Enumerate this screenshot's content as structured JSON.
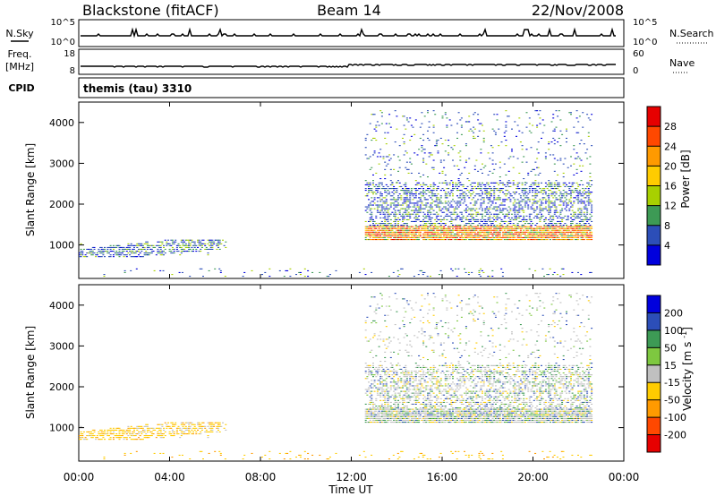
{
  "header": {
    "station": "Blackstone (fitACF)",
    "beam": "Beam 14",
    "date": "22/Nov/2008"
  },
  "sky_panel": {
    "left_label": "N.Sky",
    "right_label": "N.Search",
    "left_ticks": [
      "10^5",
      "10^0"
    ],
    "right_ticks": [
      "10^5",
      "10^0"
    ]
  },
  "freq_panel": {
    "left_label_1": "Freq.",
    "left_label_2": "[MHz]",
    "right_label": "Nave",
    "left_ticks": [
      "18",
      "8"
    ],
    "right_ticks": [
      "60",
      "0"
    ]
  },
  "cpid_panel": {
    "label": "CPID",
    "value": "themis (tau) 3310"
  },
  "chart_data": [
    {
      "type": "heatmap",
      "name": "power",
      "ylabel": "Slant Range [km]",
      "yticks": [
        1000,
        2000,
        3000,
        4000
      ],
      "ylim": [
        180,
        4500
      ],
      "colorbar": {
        "label": "Power [dB]",
        "ticks": [
          "28",
          "24",
          "20",
          "16",
          "12",
          "8",
          "4"
        ],
        "colors": [
          "#e60000",
          "#ff4800",
          "#ff9a00",
          "#ffcc00",
          "#a8d000",
          "#3d9a55",
          "#2c4eb8",
          "#0000dd"
        ]
      },
      "regions": [
        {
          "t0": 0.0,
          "t1": 6.5,
          "r0": 680,
          "r1": 1100,
          "palette": "power",
          "density": 0.55
        },
        {
          "t0": 12.6,
          "t1": 22.6,
          "r0": 1100,
          "r1": 1450,
          "palette": "power_strong",
          "density": 0.92
        },
        {
          "t0": 12.6,
          "t1": 22.6,
          "r0": 1450,
          "r1": 2500,
          "palette": "power_weak",
          "density": 0.45
        },
        {
          "t0": 12.6,
          "t1": 22.6,
          "r0": 2500,
          "r1": 4300,
          "palette": "power_weak",
          "density": 0.07
        },
        {
          "t0": 0.5,
          "t1": 22.6,
          "r0": 200,
          "r1": 420,
          "palette": "power_weak",
          "density": 0.06
        }
      ]
    },
    {
      "type": "heatmap",
      "name": "velocity",
      "ylabel": "Slant Range [km]",
      "xlabel": "Time UT",
      "xticks": [
        "00:00",
        "04:00",
        "08:00",
        "12:00",
        "16:00",
        "20:00",
        "00:00"
      ],
      "yticks": [
        1000,
        2000,
        3000,
        4000
      ],
      "ylim": [
        180,
        4500
      ],
      "xlim": [
        0,
        24
      ],
      "colorbar": {
        "label": "Velocity [m s^-1]",
        "ticks": [
          "200",
          "100",
          "50",
          "15",
          "-15",
          "-50",
          "-100",
          "-200"
        ],
        "colors": [
          "#0000dd",
          "#2c4eb8",
          "#3d9a55",
          "#7ec840",
          "#c0c0c0",
          "#ffcc00",
          "#ff9a00",
          "#ff4800",
          "#e60000"
        ]
      },
      "regions": [
        {
          "t0": 0.0,
          "t1": 6.5,
          "r0": 680,
          "r1": 1100,
          "palette": "vel_mix",
          "density": 0.55
        },
        {
          "t0": 12.6,
          "t1": 22.6,
          "r0": 1100,
          "r1": 1450,
          "palette": "vel_grey",
          "density": 0.92
        },
        {
          "t0": 12.6,
          "t1": 22.6,
          "r0": 1450,
          "r1": 2500,
          "palette": "vel_grey",
          "density": 0.45
        },
        {
          "t0": 12.6,
          "t1": 22.6,
          "r0": 2500,
          "r1": 4300,
          "palette": "vel_grey",
          "density": 0.07
        },
        {
          "t0": 0.5,
          "t1": 22.6,
          "r0": 200,
          "r1": 420,
          "palette": "vel_orange",
          "density": 0.06
        }
      ]
    }
  ]
}
